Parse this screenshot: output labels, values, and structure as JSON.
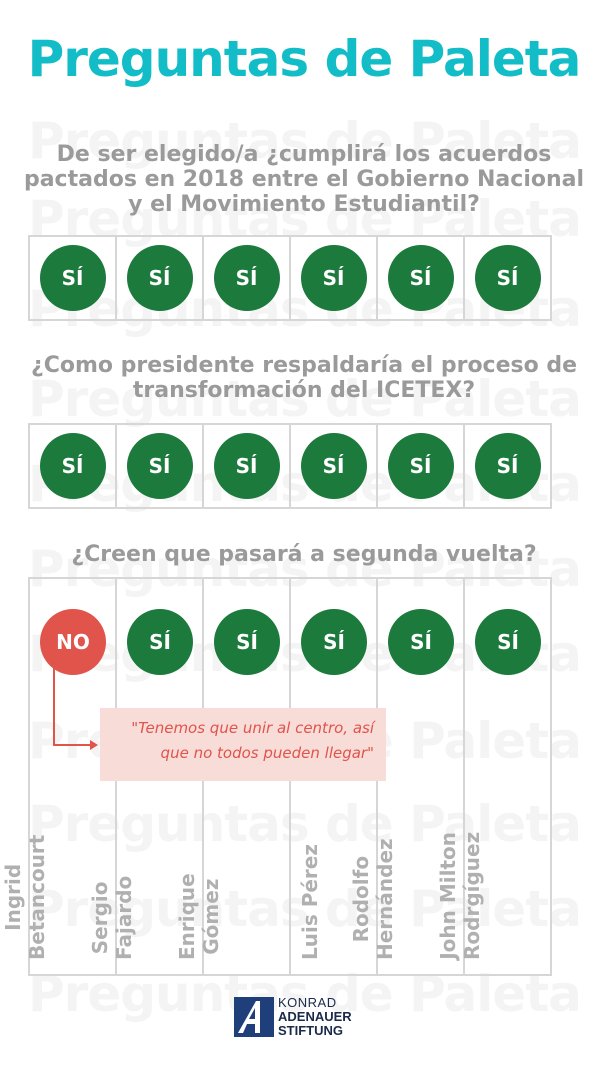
{
  "watermark": "Preguntas de Paleta",
  "title": "Preguntas de Paleta",
  "questions": [
    {
      "text_line1": "De ser elegido/a ¿cumplirá los acuerdos",
      "text_line2": "pactados en 2018 entre el Gobierno Nacional",
      "text_line3": "y el Movimiento Estudiantil?",
      "answers": [
        "SÍ",
        "SÍ",
        "SÍ",
        "SÍ",
        "SÍ",
        "SÍ"
      ]
    },
    {
      "text_line1": "¿Como presidente respaldaría el proceso de",
      "text_line2": "transformación del ICETEX?",
      "answers": [
        "SÍ",
        "SÍ",
        "SÍ",
        "SÍ",
        "SÍ",
        "SÍ"
      ]
    },
    {
      "text_line1": "¿Creen que pasará a segunda vuelta?",
      "answers": [
        "NO",
        "SÍ",
        "SÍ",
        "SÍ",
        "SÍ",
        "SÍ"
      ]
    }
  ],
  "quote_line1": "\"Tenemos que unir al centro, así",
  "quote_line2": "que no todos pueden llegar\"",
  "candidates": [
    {
      "line1": "Ingrid",
      "line2": "Betancourt"
    },
    {
      "line1": "Sergio",
      "line2": "Fajardo"
    },
    {
      "line1": "Enrique",
      "line2": "Gómez"
    },
    {
      "line1": "Luis Pérez",
      "line2": ""
    },
    {
      "line1": "Rodolfo",
      "line2": "Hernández"
    },
    {
      "line1": "John Milton",
      "line2": "Rodrgíguez"
    }
  ],
  "logo": {
    "line1": "KONRAD",
    "line2": "ADENAUER",
    "line3": "STIFTUNG"
  },
  "colors": {
    "accent": "#12bdc7",
    "yes": "#1b7a3c",
    "no": "#e0544c",
    "quote_bg": "#f8dcd8"
  }
}
